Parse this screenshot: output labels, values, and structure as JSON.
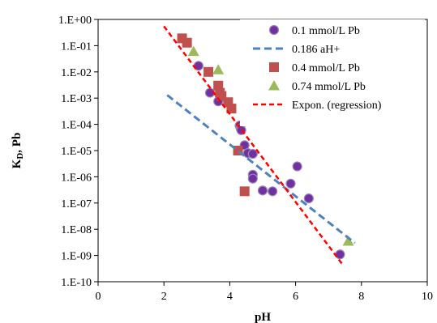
{
  "chart_data": {
    "type": "scatter",
    "title": "",
    "xlabel": "pH",
    "ylabel": "K_D, Pb",
    "ylabel_main": "K",
    "ylabel_sub": "D",
    "ylabel_rest": ", Pb",
    "xlim": [
      0,
      10
    ],
    "ylim_log10": [
      -10,
      0
    ],
    "yscale": "log",
    "x_ticks": [
      0,
      2,
      4,
      6,
      8,
      10
    ],
    "x_tick_labels": [
      "0",
      "2",
      "4",
      "6",
      "8",
      "10"
    ],
    "y_ticks_log10": [
      0,
      -1,
      -2,
      -3,
      -4,
      -5,
      -6,
      -7,
      -8,
      -9,
      -10
    ],
    "y_tick_labels": [
      "1.E+00",
      "1.E-01",
      "1.E-02",
      "1.E-03",
      "1.E-04",
      "1.E-05",
      "1.E-06",
      "1.E-07",
      "1.E-08",
      "1.E-09",
      "1.E-10"
    ],
    "grid": false,
    "legend_position": "top-right",
    "series": [
      {
        "name": "0.1 mmol/L Pb",
        "kind": "points",
        "marker": "circle",
        "color": "#7030A0",
        "stroke": "#9C86B8",
        "points": [
          [
            3.05,
            0.017
          ],
          [
            3.4,
            0.0016
          ],
          [
            3.65,
            0.00075
          ],
          [
            4.3,
            9e-05
          ],
          [
            4.33,
            7e-05
          ],
          [
            4.35,
            6e-05
          ],
          [
            4.45,
            1.6e-05
          ],
          [
            4.55,
            8e-06
          ],
          [
            4.7,
            7.5e-06
          ],
          [
            4.7,
            1.2e-06
          ],
          [
            4.7,
            8.5e-07
          ],
          [
            5.0,
            3e-07
          ],
          [
            5.3,
            2.8e-07
          ],
          [
            5.85,
            5.5e-07
          ],
          [
            6.05,
            2.5e-06
          ],
          [
            6.4,
            1.5e-07
          ],
          [
            7.35,
            1.1e-09
          ]
        ]
      },
      {
        "name": "0.186 aH+",
        "kind": "line",
        "style": "dashed",
        "color": "#4F81BD",
        "points": [
          [
            2.1,
            0.0013
          ],
          [
            7.8,
            3e-09
          ]
        ]
      },
      {
        "name": "0.4 mmol/L Pb",
        "kind": "points",
        "marker": "square",
        "color": "#C0504D",
        "points": [
          [
            2.55,
            0.19
          ],
          [
            2.7,
            0.13
          ],
          [
            3.35,
            0.01
          ],
          [
            3.65,
            0.003
          ],
          [
            3.7,
            0.0016
          ],
          [
            3.75,
            0.0012
          ],
          [
            3.95,
            0.0007
          ],
          [
            4.05,
            0.0004
          ],
          [
            4.25,
            1e-05
          ],
          [
            4.45,
            2.8e-07
          ]
        ]
      },
      {
        "name": "0.74 mmol/L Pb",
        "kind": "points",
        "marker": "triangle",
        "color": "#9BBB59",
        "points": [
          [
            2.9,
            0.06
          ],
          [
            3.65,
            0.012
          ],
          [
            7.6,
            3.5e-09
          ]
        ]
      },
      {
        "name": "Expon. (regression)",
        "kind": "line",
        "style": "dotted",
        "color": "#FF0000",
        "points": [
          [
            2.0,
            0.55
          ],
          [
            7.4,
            5e-10
          ]
        ]
      }
    ]
  }
}
